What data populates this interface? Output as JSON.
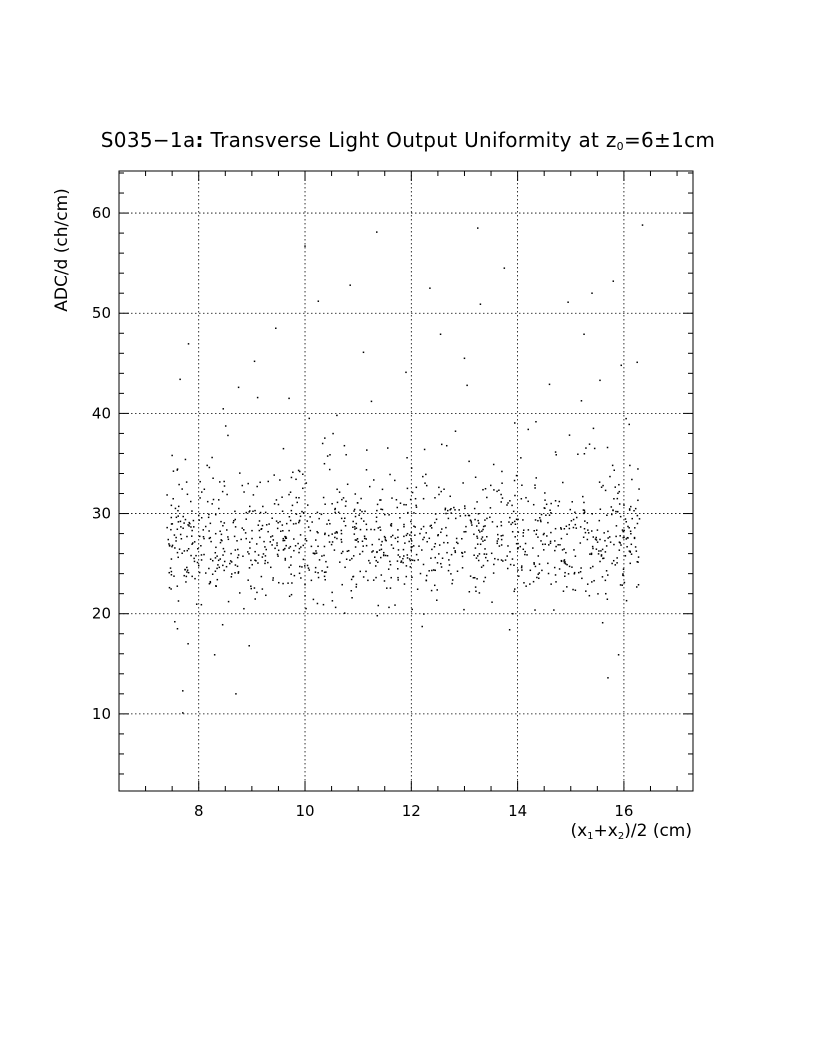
{
  "chart_data": {
    "type": "scatter",
    "title": {
      "prefix": "S035−1a",
      "colon": ":",
      "main": " Transverse Light Output Uniformity at z",
      "sub": "0",
      "suffix": "=6±1cm"
    },
    "ylabel": "ADC/d (ch/cm)",
    "xlabel": {
      "open": "(x",
      "sub1": "1",
      "plus": "+x",
      "sub2": "2",
      "close": ")/2 (cm)"
    },
    "xlim": [
      6.5,
      17.3
    ],
    "ylim": [
      2.3,
      64.2
    ],
    "x_ticks": [
      8,
      10,
      12,
      14,
      16
    ],
    "y_ticks": [
      10,
      20,
      30,
      40,
      50,
      60
    ],
    "grid": true,
    "legend": "none",
    "marker_color": "#000000",
    "x_range_of_points": [
      7.4,
      16.3
    ],
    "dense_band_y": [
      24,
      30
    ],
    "points": [
      [
        7.45,
        22.6
      ],
      [
        7.55,
        19.2
      ],
      [
        7.6,
        26.1
      ],
      [
        7.65,
        43.4
      ],
      [
        7.7,
        12.3
      ],
      [
        7.75,
        35.4
      ],
      [
        7.8,
        17.0
      ],
      [
        7.85,
        31.2
      ],
      [
        7.5,
        35.8
      ],
      [
        7.6,
        18.5
      ],
      [
        7.7,
        10.1
      ],
      [
        7.9,
        29.3
      ],
      [
        8.0,
        24.8
      ],
      [
        8.05,
        20.9
      ],
      [
        8.1,
        27.5
      ],
      [
        8.2,
        34.6
      ],
      [
        8.3,
        15.9
      ],
      [
        8.35,
        23.4
      ],
      [
        8.45,
        18.9
      ],
      [
        8.55,
        37.8
      ],
      [
        8.65,
        29.1
      ],
      [
        8.7,
        12.0
      ],
      [
        8.75,
        42.6
      ],
      [
        8.85,
        20.5
      ],
      [
        8.95,
        16.8
      ],
      [
        9.05,
        45.2
      ],
      [
        9.1,
        32.7
      ],
      [
        9.2,
        28.8
      ],
      [
        9.3,
        25.1
      ],
      [
        9.45,
        48.5
      ],
      [
        9.5,
        30.9
      ],
      [
        9.6,
        26.4
      ],
      [
        9.7,
        41.5
      ],
      [
        9.8,
        23.8
      ],
      [
        9.9,
        34.2
      ],
      [
        10.0,
        56.7
      ],
      [
        10.1,
        28.3
      ],
      [
        10.2,
        24.6
      ],
      [
        10.25,
        51.2
      ],
      [
        10.35,
        31.6
      ],
      [
        10.5,
        26.9
      ],
      [
        10.6,
        39.8
      ],
      [
        10.7,
        22.9
      ],
      [
        10.85,
        52.8
      ],
      [
        10.95,
        29.7
      ],
      [
        11.1,
        46.1
      ],
      [
        11.2,
        25.3
      ],
      [
        11.25,
        41.2
      ],
      [
        11.35,
        58.1
      ],
      [
        11.45,
        27.2
      ],
      [
        11.6,
        33.9
      ],
      [
        11.75,
        23.6
      ],
      [
        11.9,
        44.1
      ],
      [
        12.0,
        28.1
      ],
      [
        12.1,
        25.9
      ],
      [
        12.25,
        36.4
      ],
      [
        12.35,
        52.5
      ],
      [
        12.5,
        27.8
      ],
      [
        12.55,
        47.9
      ],
      [
        12.7,
        24.3
      ],
      [
        12.8,
        30.6
      ],
      [
        12.95,
        26.1
      ],
      [
        13.0,
        45.5
      ],
      [
        13.05,
        42.8
      ],
      [
        13.2,
        29.4
      ],
      [
        13.25,
        58.5
      ],
      [
        13.3,
        50.9
      ],
      [
        13.4,
        25.6
      ],
      [
        13.55,
        34.9
      ],
      [
        13.7,
        27.4
      ],
      [
        13.75,
        54.5
      ],
      [
        13.85,
        18.4
      ],
      [
        13.95,
        31.8
      ],
      [
        14.05,
        26.7
      ],
      [
        14.2,
        38.4
      ],
      [
        14.3,
        23.2
      ],
      [
        14.45,
        29.9
      ],
      [
        14.6,
        42.9
      ],
      [
        14.7,
        26.3
      ],
      [
        14.85,
        33.1
      ],
      [
        14.95,
        51.1
      ],
      [
        15.05,
        28.6
      ],
      [
        15.15,
        24.1
      ],
      [
        15.25,
        47.9
      ],
      [
        15.35,
        21.8
      ],
      [
        15.4,
        52.0
      ],
      [
        15.45,
        36.5
      ],
      [
        15.55,
        43.3
      ],
      [
        15.6,
        19.1
      ],
      [
        15.7,
        13.6
      ],
      [
        15.8,
        53.2
      ],
      [
        15.85,
        30.2
      ],
      [
        15.9,
        15.9
      ],
      [
        15.95,
        44.8
      ],
      [
        16.05,
        21.3
      ],
      [
        16.1,
        38.9
      ],
      [
        16.2,
        27.6
      ],
      [
        16.25,
        45.1
      ],
      [
        16.35,
        58.8
      ],
      [
        16.15,
        33.4
      ]
    ]
  }
}
